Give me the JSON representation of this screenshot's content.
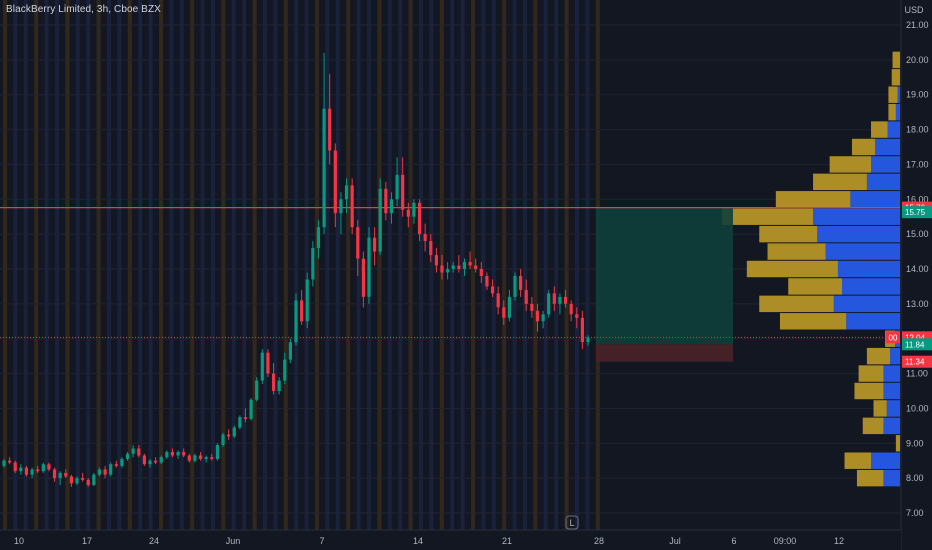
{
  "header": {
    "title": "BlackBerry Limited, 3h, Cboe BZX",
    "currency": "USD"
  },
  "chart_data": {
    "type": "candlestick",
    "title": "BlackBerry Limited, 3h, Cboe BZX",
    "y_axis": {
      "range": [
        6.5,
        21.5
      ],
      "ticks": [
        7.0,
        8.0,
        9.0,
        10.0,
        11.0,
        12.0,
        13.0,
        14.0,
        15.0,
        16.0,
        17.0,
        18.0,
        19.0,
        20.0,
        21.0
      ],
      "tick_labels": [
        "7.00",
        "8.00",
        "9.00",
        "10.00",
        "11.00",
        "12.00",
        "13.00",
        "14.00",
        "15.00",
        "16.00",
        "17.00",
        "18.00",
        "19.00",
        "20.00",
        "21.00"
      ]
    },
    "x_axis": {
      "tick_labels": [
        "10",
        "17",
        "24",
        "Jun",
        "7",
        "14",
        "21",
        "28",
        "Jul",
        "6",
        "09:00",
        "12"
      ]
    },
    "price_tags": [
      {
        "label": "15.76",
        "value": 15.76,
        "color": "#f23645"
      },
      {
        "label": "15.75",
        "value": 15.63,
        "color": "#089981"
      },
      {
        "label": "12.04",
        "value": 12.04,
        "color": "#f23645"
      },
      {
        "label": "11.84",
        "value": 11.84,
        "color": "#089981"
      },
      {
        "label": "11.34",
        "value": 11.34,
        "color": "#f23645"
      }
    ],
    "tag_badge": "00",
    "horizontal_line": {
      "value": 15.76,
      "color": "#f23645"
    },
    "last_price_line": {
      "value": 12.04,
      "color": "#f23645"
    },
    "position_tool": {
      "entry": 11.84,
      "target": 15.75,
      "stop": 11.34,
      "profit_color": "#0e3f3b",
      "loss_color": "#4a2227"
    },
    "marker_label": "L",
    "volume_profile": {
      "colors": {
        "up": "#2962ff",
        "down": "#c9a227"
      },
      "rows": [
        {
          "price": 20.0,
          "up": 0.0,
          "down": 0.9
        },
        {
          "price": 19.5,
          "up": 0.0,
          "down": 1.0
        },
        {
          "price": 19.0,
          "up": 0.3,
          "down": 1.1
        },
        {
          "price": 18.5,
          "up": 0.5,
          "down": 0.9
        },
        {
          "price": 18.0,
          "up": 1.5,
          "down": 2.0
        },
        {
          "price": 17.5,
          "up": 3.0,
          "down": 2.8
        },
        {
          "price": 17.0,
          "up": 3.5,
          "down": 5.0
        },
        {
          "price": 16.5,
          "up": 4.0,
          "down": 6.5
        },
        {
          "price": 16.0,
          "up": 6.0,
          "down": 9.0
        },
        {
          "price": 15.5,
          "up": 10.5,
          "down": 11.0
        },
        {
          "price": 15.0,
          "up": 10.0,
          "down": 7.0
        },
        {
          "price": 14.5,
          "up": 9.0,
          "down": 7.0
        },
        {
          "price": 14.0,
          "up": 7.5,
          "down": 11.0
        },
        {
          "price": 13.5,
          "up": 7.0,
          "down": 6.5
        },
        {
          "price": 13.0,
          "up": 8.0,
          "down": 9.0
        },
        {
          "price": 12.5,
          "up": 6.5,
          "down": 8.0
        },
        {
          "price": 12.0,
          "up": 0.6,
          "down": 1.2
        },
        {
          "price": 11.5,
          "up": 1.2,
          "down": 2.8
        },
        {
          "price": 11.0,
          "up": 2.0,
          "down": 3.0
        },
        {
          "price": 10.5,
          "up": 2.0,
          "down": 3.5
        },
        {
          "price": 10.0,
          "up": 1.6,
          "down": 1.6
        },
        {
          "price": 9.5,
          "up": 2.0,
          "down": 2.5
        },
        {
          "price": 9.0,
          "up": 0.0,
          "down": 0.5
        },
        {
          "price": 8.5,
          "up": 3.5,
          "down": 3.2
        },
        {
          "price": 8.0,
          "up": 2.0,
          "down": 3.2
        }
      ]
    },
    "candles": [
      [
        8.35,
        8.55,
        8.3,
        8.5
      ],
      [
        8.5,
        8.6,
        8.4,
        8.45
      ],
      [
        8.45,
        8.5,
        8.15,
        8.2
      ],
      [
        8.2,
        8.4,
        8.1,
        8.3
      ],
      [
        8.3,
        8.35,
        8.05,
        8.1
      ],
      [
        8.1,
        8.3,
        8.0,
        8.25
      ],
      [
        8.25,
        8.35,
        8.15,
        8.2
      ],
      [
        8.2,
        8.45,
        8.15,
        8.4
      ],
      [
        8.4,
        8.45,
        8.2,
        8.25
      ],
      [
        8.25,
        8.3,
        7.9,
        8.0
      ],
      [
        8.0,
        8.2,
        7.8,
        8.15
      ],
      [
        8.15,
        8.25,
        8.0,
        8.05
      ],
      [
        8.05,
        8.1,
        7.75,
        7.85
      ],
      [
        7.85,
        8.05,
        7.8,
        8.0
      ],
      [
        8.0,
        8.15,
        7.9,
        7.95
      ],
      [
        7.95,
        8.0,
        7.75,
        7.8
      ],
      [
        7.8,
        8.15,
        7.78,
        8.1
      ],
      [
        8.1,
        8.3,
        8.05,
        8.25
      ],
      [
        8.25,
        8.35,
        8.0,
        8.1
      ],
      [
        8.1,
        8.45,
        8.05,
        8.4
      ],
      [
        8.4,
        8.5,
        8.3,
        8.35
      ],
      [
        8.35,
        8.6,
        8.3,
        8.55
      ],
      [
        8.55,
        8.75,
        8.5,
        8.7
      ],
      [
        8.7,
        8.95,
        8.6,
        8.85
      ],
      [
        8.85,
        8.95,
        8.6,
        8.65
      ],
      [
        8.65,
        8.7,
        8.35,
        8.4
      ],
      [
        8.4,
        8.55,
        8.3,
        8.5
      ],
      [
        8.5,
        8.6,
        8.4,
        8.45
      ],
      [
        8.45,
        8.65,
        8.4,
        8.6
      ],
      [
        8.6,
        8.8,
        8.55,
        8.75
      ],
      [
        8.75,
        8.85,
        8.6,
        8.65
      ],
      [
        8.65,
        8.8,
        8.55,
        8.75
      ],
      [
        8.75,
        8.85,
        8.6,
        8.65
      ],
      [
        8.65,
        8.7,
        8.45,
        8.5
      ],
      [
        8.5,
        8.7,
        8.45,
        8.65
      ],
      [
        8.65,
        8.75,
        8.5,
        8.55
      ],
      [
        8.55,
        8.65,
        8.45,
        8.6
      ],
      [
        8.6,
        8.7,
        8.5,
        8.55
      ],
      [
        8.55,
        9.0,
        8.5,
        8.95
      ],
      [
        8.95,
        9.3,
        8.9,
        9.25
      ],
      [
        9.25,
        9.4,
        9.1,
        9.2
      ],
      [
        9.2,
        9.5,
        9.15,
        9.45
      ],
      [
        9.45,
        9.8,
        9.4,
        9.75
      ],
      [
        9.75,
        10.0,
        9.6,
        9.7
      ],
      [
        9.7,
        10.3,
        9.65,
        10.25
      ],
      [
        10.25,
        10.9,
        10.2,
        10.8
      ],
      [
        10.8,
        11.7,
        10.7,
        11.6
      ],
      [
        11.6,
        11.7,
        10.9,
        11.0
      ],
      [
        11.0,
        11.3,
        10.4,
        10.5
      ],
      [
        10.5,
        10.9,
        10.4,
        10.8
      ],
      [
        10.8,
        11.6,
        10.7,
        11.4
      ],
      [
        11.4,
        12.0,
        11.3,
        11.9
      ],
      [
        11.9,
        13.3,
        11.8,
        13.1
      ],
      [
        13.1,
        13.4,
        12.4,
        12.5
      ],
      [
        12.5,
        13.9,
        12.3,
        13.7
      ],
      [
        13.7,
        14.8,
        13.5,
        14.6
      ],
      [
        14.6,
        15.4,
        14.3,
        15.2
      ],
      [
        15.2,
        20.2,
        15.0,
        18.6
      ],
      [
        18.6,
        19.6,
        17.0,
        17.4
      ],
      [
        17.4,
        17.6,
        15.2,
        15.6
      ],
      [
        15.6,
        16.2,
        15.0,
        16.0
      ],
      [
        16.0,
        16.6,
        15.6,
        16.4
      ],
      [
        16.4,
        16.6,
        15.0,
        15.2
      ],
      [
        15.2,
        15.4,
        13.8,
        14.3
      ],
      [
        14.3,
        14.5,
        12.9,
        13.2
      ],
      [
        13.2,
        15.2,
        13.0,
        14.9
      ],
      [
        14.9,
        15.2,
        14.1,
        14.5
      ],
      [
        14.5,
        16.6,
        14.4,
        16.3
      ],
      [
        16.3,
        16.5,
        15.4,
        15.6
      ],
      [
        15.6,
        16.2,
        15.3,
        16.0
      ],
      [
        16.0,
        17.2,
        15.8,
        16.7
      ],
      [
        16.7,
        17.2,
        15.5,
        15.7
      ],
      [
        15.7,
        15.9,
        15.2,
        15.5
      ],
      [
        15.5,
        16.0,
        15.3,
        15.9
      ],
      [
        15.9,
        16.0,
        14.8,
        15.0
      ],
      [
        15.0,
        15.3,
        14.5,
        14.8
      ],
      [
        14.8,
        15.0,
        14.2,
        14.4
      ],
      [
        14.4,
        14.6,
        13.9,
        14.1
      ],
      [
        14.1,
        14.4,
        13.7,
        13.9
      ],
      [
        13.9,
        14.2,
        13.7,
        14.0
      ],
      [
        14.0,
        14.2,
        13.9,
        14.1
      ],
      [
        14.1,
        14.4,
        13.9,
        14.0
      ],
      [
        14.0,
        14.3,
        13.8,
        14.2
      ],
      [
        14.2,
        14.5,
        14.0,
        14.1
      ],
      [
        14.1,
        14.3,
        13.9,
        14.0
      ],
      [
        14.0,
        14.2,
        13.6,
        13.8
      ],
      [
        13.8,
        13.9,
        13.4,
        13.5
      ],
      [
        13.5,
        13.7,
        13.2,
        13.3
      ],
      [
        13.3,
        13.5,
        12.7,
        12.9
      ],
      [
        12.9,
        13.1,
        12.4,
        12.6
      ],
      [
        12.6,
        13.4,
        12.5,
        13.2
      ],
      [
        13.2,
        13.9,
        13.1,
        13.8
      ],
      [
        13.8,
        14.0,
        13.2,
        13.4
      ],
      [
        13.4,
        13.7,
        12.8,
        13.0
      ],
      [
        13.0,
        13.2,
        12.6,
        12.8
      ],
      [
        12.8,
        13.0,
        12.2,
        12.5
      ],
      [
        12.5,
        12.8,
        12.3,
        12.7
      ],
      [
        12.7,
        13.4,
        12.6,
        13.3
      ],
      [
        13.3,
        13.5,
        12.8,
        13.0
      ],
      [
        13.0,
        13.3,
        12.7,
        13.2
      ],
      [
        13.2,
        13.4,
        12.9,
        13.0
      ],
      [
        13.0,
        13.1,
        12.5,
        12.7
      ],
      [
        12.7,
        12.9,
        12.3,
        12.6
      ],
      [
        12.6,
        12.8,
        11.7,
        11.9
      ],
      [
        11.9,
        12.1,
        11.8,
        12.04
      ]
    ]
  }
}
